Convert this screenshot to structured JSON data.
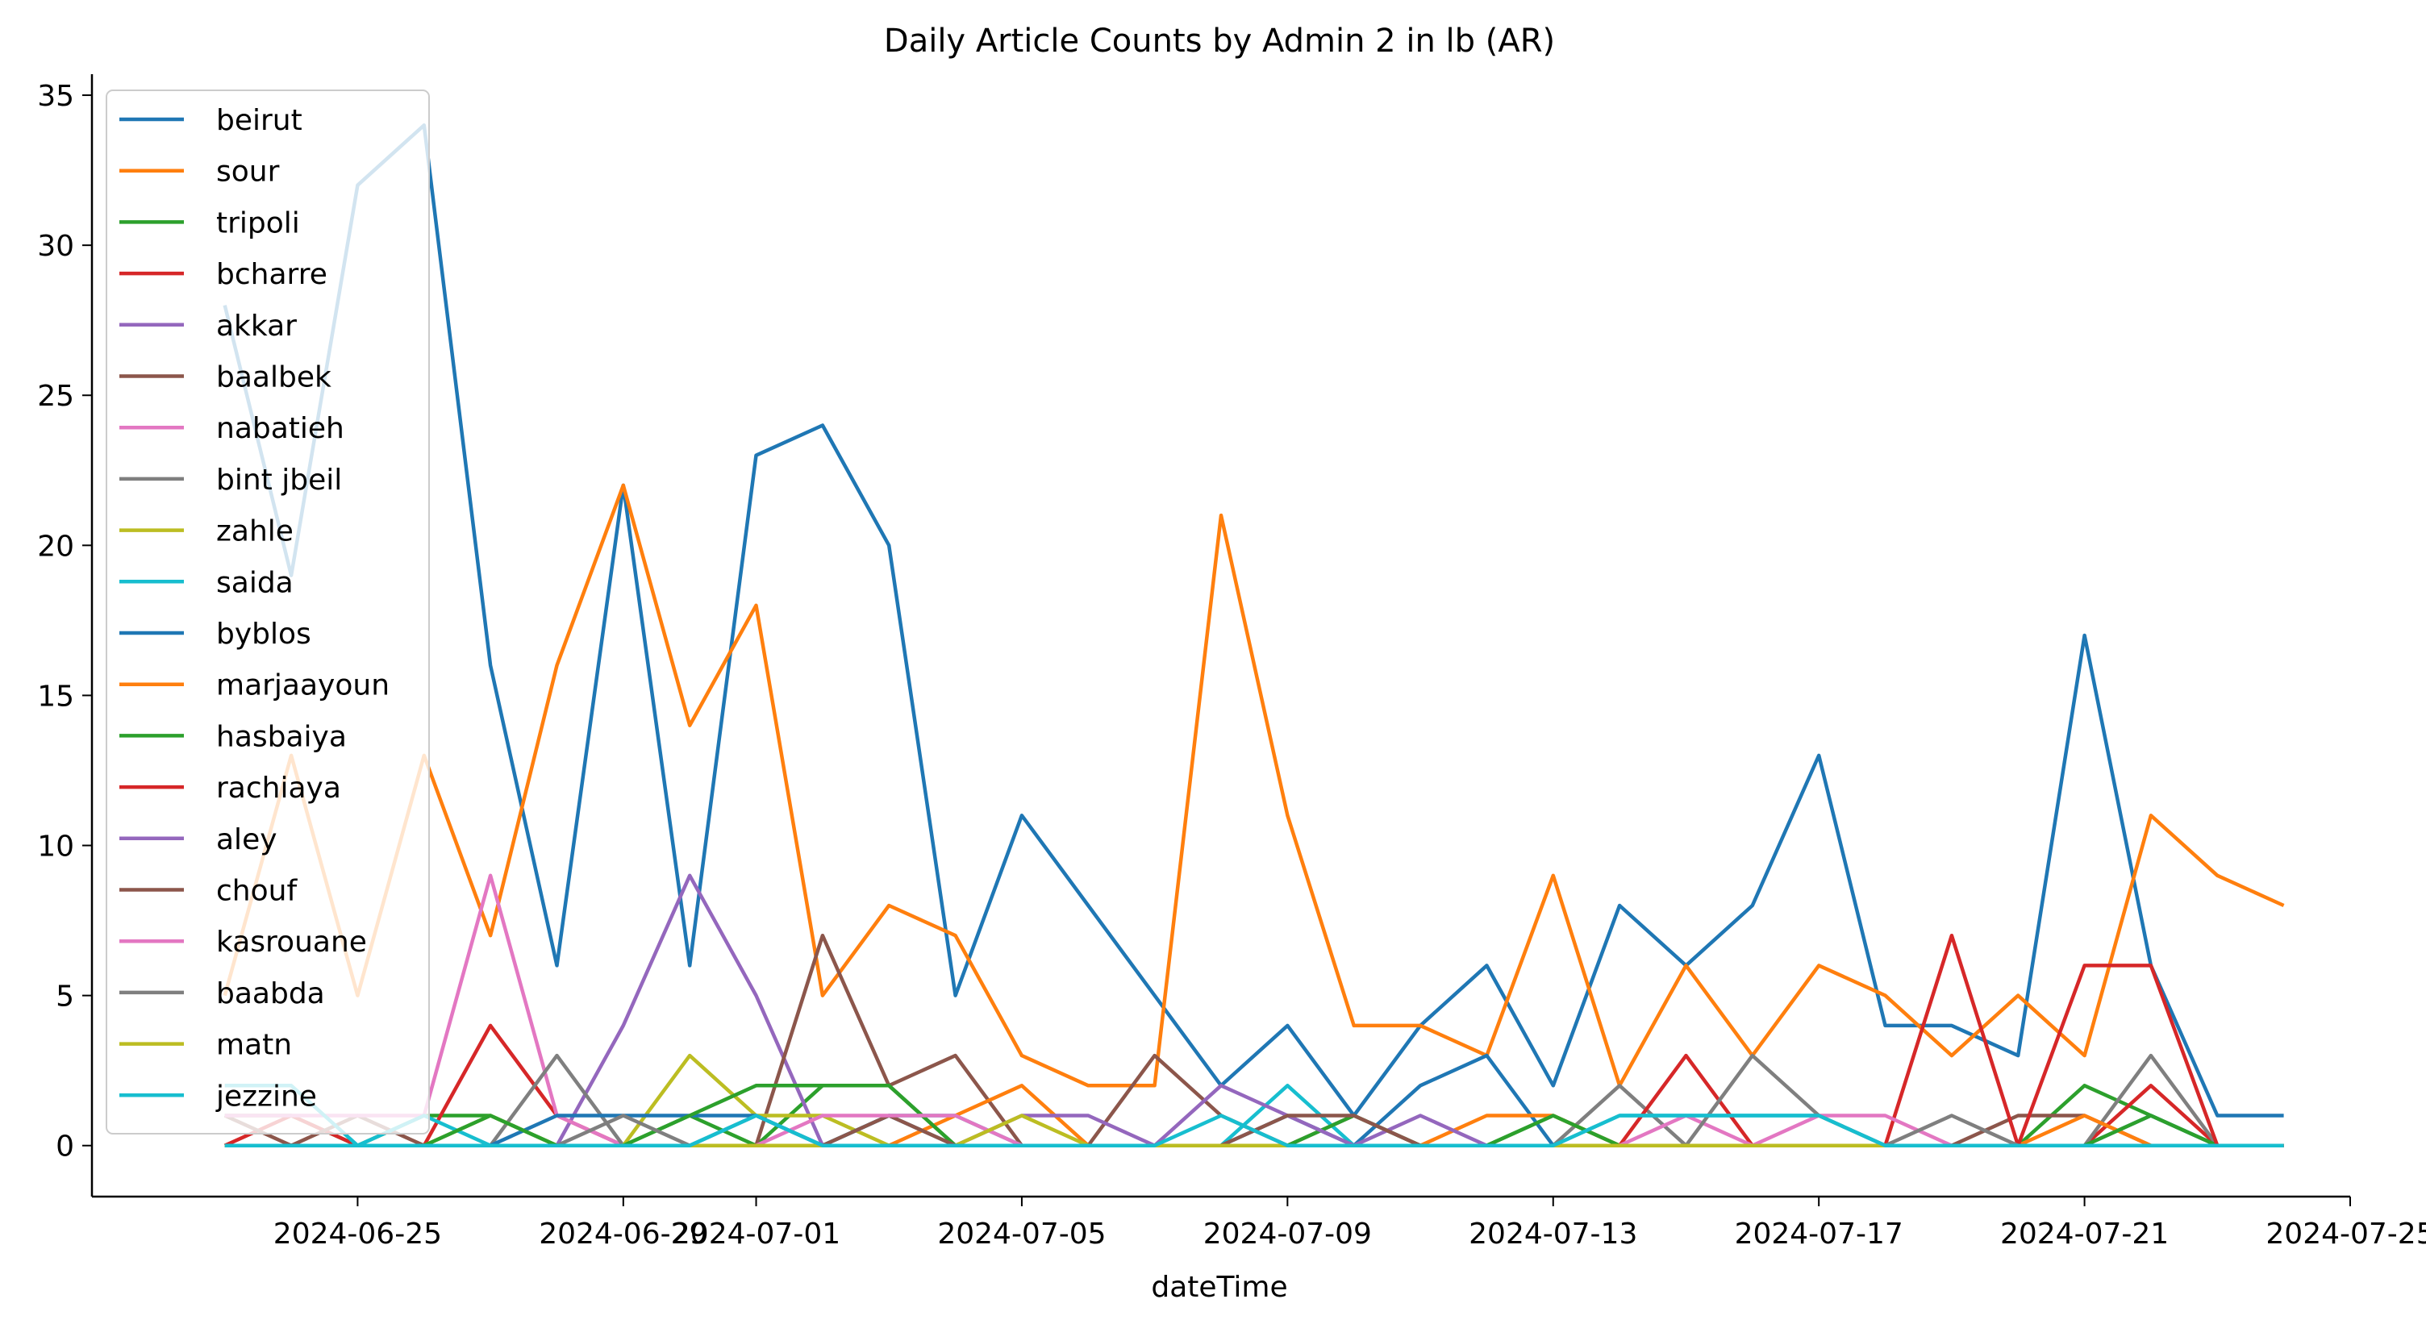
{
  "chart_data": {
    "type": "line",
    "title": "Daily Article Counts by Admin 2 in lb (AR)",
    "xlabel": "dateTime",
    "ylabel": "",
    "ylim": [
      -1.7,
      35.7
    ],
    "yticks": [
      0,
      5,
      10,
      15,
      20,
      25,
      30,
      35
    ],
    "xlim": [
      "2024-06-21",
      "2024-07-25"
    ],
    "xticks": [
      "2024-06-25",
      "2024-06-29",
      "2024-07-01",
      "2024-07-05",
      "2024-07-09",
      "2024-07-13",
      "2024-07-17",
      "2024-07-21",
      "2024-07-25"
    ],
    "x": [
      "2024-06-23",
      "2024-06-24",
      "2024-06-25",
      "2024-06-26",
      "2024-06-27",
      "2024-06-28",
      "2024-06-29",
      "2024-06-30",
      "2024-07-01",
      "2024-07-02",
      "2024-07-03",
      "2024-07-04",
      "2024-07-05",
      "2024-07-06",
      "2024-07-07",
      "2024-07-08",
      "2024-07-09",
      "2024-07-10",
      "2024-07-11",
      "2024-07-12",
      "2024-07-13",
      "2024-07-14",
      "2024-07-15",
      "2024-07-16",
      "2024-07-17",
      "2024-07-18",
      "2024-07-19",
      "2024-07-20",
      "2024-07-21",
      "2024-07-22",
      "2024-07-23",
      "2024-07-24"
    ],
    "legend_position": "upper left",
    "grid": false,
    "series": [
      {
        "name": "beirut",
        "color": "#1f77b4",
        "values": [
          28,
          19,
          32,
          34,
          16,
          6,
          22,
          6,
          23,
          24,
          20,
          5,
          11,
          8,
          5,
          2,
          4,
          1,
          4,
          6,
          2,
          8,
          6,
          8,
          13,
          4,
          4,
          3,
          17,
          6,
          1,
          1
        ]
      },
      {
        "name": "sour",
        "color": "#ff7f0e",
        "values": [
          5,
          13,
          5,
          13,
          7,
          16,
          22,
          14,
          18,
          5,
          8,
          7,
          3,
          2,
          2,
          21,
          11,
          4,
          4,
          3,
          9,
          2,
          6,
          3,
          6,
          5,
          3,
          5,
          3,
          11,
          9,
          8
        ]
      },
      {
        "name": "tripoli",
        "color": "#2ca02c",
        "values": [
          1,
          1,
          0,
          1,
          1,
          0,
          0,
          1,
          0,
          2,
          2,
          0,
          0,
          0,
          0,
          0,
          0,
          0,
          0,
          0,
          1,
          0,
          0,
          0,
          0,
          0,
          0,
          0,
          2,
          1,
          0,
          0
        ]
      },
      {
        "name": "bcharre",
        "color": "#d62728",
        "values": [
          0,
          1,
          0,
          0,
          4,
          1,
          0,
          0,
          0,
          0,
          0,
          0,
          0,
          0,
          0,
          0,
          0,
          0,
          0,
          0,
          0,
          0,
          0,
          0,
          0,
          0,
          0,
          0,
          0,
          2,
          0,
          0
        ]
      },
      {
        "name": "akkar",
        "color": "#9467bd",
        "values": [
          0,
          0,
          0,
          0,
          0,
          0,
          4,
          9,
          5,
          0,
          0,
          0,
          0,
          0,
          0,
          0,
          0,
          0,
          0,
          0,
          0,
          0,
          0,
          0,
          0,
          0,
          0,
          0,
          0,
          0,
          0,
          0
        ]
      },
      {
        "name": "baalbek",
        "color": "#8c564b",
        "values": [
          1,
          0,
          1,
          0,
          0,
          0,
          0,
          0,
          0,
          7,
          2,
          3,
          0,
          0,
          3,
          1,
          0,
          1,
          0,
          0,
          0,
          0,
          0,
          0,
          0,
          0,
          0,
          1,
          1,
          0,
          0,
          0
        ]
      },
      {
        "name": "nabatieh",
        "color": "#e377c2",
        "values": [
          1,
          1,
          1,
          1,
          9,
          1,
          0,
          0,
          1,
          0,
          0,
          0,
          0,
          0,
          0,
          0,
          0,
          0,
          0,
          0,
          0,
          0,
          0,
          0,
          0,
          0,
          0,
          0,
          0,
          0,
          0,
          0
        ]
      },
      {
        "name": "bint jbeil",
        "color": "#7f7f7f",
        "values": [
          0,
          0,
          0,
          0,
          0,
          3,
          0,
          0,
          0,
          0,
          0,
          0,
          0,
          0,
          0,
          0,
          0,
          0,
          0,
          0,
          0,
          2,
          0,
          0,
          0,
          0,
          0,
          0,
          0,
          3,
          0,
          0
        ]
      },
      {
        "name": "zahle",
        "color": "#bcbd22",
        "values": [
          0,
          0,
          0,
          0,
          1,
          0,
          0,
          3,
          1,
          1,
          0,
          0,
          0,
          0,
          0,
          0,
          0,
          0,
          0,
          0,
          0,
          0,
          0,
          0,
          0,
          0,
          0,
          0,
          0,
          0,
          0,
          0
        ]
      },
      {
        "name": "saida",
        "color": "#17becf",
        "values": [
          2,
          2,
          0,
          1,
          0,
          0,
          0,
          0,
          1,
          0,
          1,
          1,
          0,
          0,
          0,
          0,
          2,
          0,
          0,
          0,
          0,
          1,
          1,
          1,
          1,
          0,
          0,
          0,
          0,
          0,
          0,
          0
        ]
      },
      {
        "name": "byblos",
        "color": "#1f77b4",
        "values": [
          0,
          0,
          0,
          0,
          0,
          1,
          1,
          1,
          1,
          0,
          1,
          0,
          0,
          0,
          0,
          0,
          1,
          0,
          2,
          3,
          0,
          0,
          0,
          0,
          0,
          0,
          0,
          0,
          0,
          1,
          0,
          0
        ]
      },
      {
        "name": "marjaayoun",
        "color": "#ff7f0e",
        "values": [
          0,
          0,
          0,
          0,
          0,
          0,
          0,
          0,
          0,
          0,
          0,
          1,
          2,
          0,
          0,
          0,
          0,
          0,
          0,
          1,
          1,
          0,
          0,
          0,
          0,
          0,
          0,
          0,
          1,
          0,
          0,
          0
        ]
      },
      {
        "name": "hasbaiya",
        "color": "#2ca02c",
        "values": [
          0,
          0,
          0,
          0,
          1,
          0,
          0,
          1,
          2,
          2,
          2,
          0,
          0,
          0,
          0,
          0,
          0,
          1,
          0,
          0,
          1,
          0,
          0,
          0,
          0,
          0,
          0,
          0,
          0,
          1,
          0,
          0
        ]
      },
      {
        "name": "rachiaya",
        "color": "#d62728",
        "values": [
          0,
          0,
          0,
          0,
          0,
          0,
          0,
          0,
          0,
          0,
          0,
          0,
          0,
          0,
          0,
          0,
          0,
          0,
          0,
          0,
          0,
          0,
          3,
          0,
          0,
          0,
          7,
          0,
          6,
          6,
          0,
          0
        ]
      },
      {
        "name": "aley",
        "color": "#9467bd",
        "values": [
          0,
          0,
          0,
          0,
          0,
          0,
          0,
          0,
          0,
          0,
          0,
          0,
          1,
          1,
          0,
          2,
          1,
          0,
          1,
          0,
          0,
          0,
          0,
          0,
          0,
          0,
          0,
          0,
          0,
          0,
          0,
          0
        ]
      },
      {
        "name": "chouf",
        "color": "#8c564b",
        "values": [
          0,
          0,
          0,
          0,
          0,
          0,
          0,
          0,
          0,
          0,
          1,
          0,
          0,
          0,
          0,
          0,
          1,
          1,
          0,
          0,
          0,
          0,
          0,
          0,
          0,
          0,
          0,
          0,
          0,
          0,
          0,
          0
        ]
      },
      {
        "name": "kasrouane",
        "color": "#e377c2",
        "values": [
          0,
          0,
          0,
          0,
          0,
          0,
          0,
          0,
          0,
          1,
          1,
          1,
          0,
          0,
          0,
          0,
          0,
          0,
          0,
          0,
          0,
          0,
          1,
          0,
          1,
          1,
          0,
          0,
          0,
          0,
          0,
          0
        ]
      },
      {
        "name": "baabda",
        "color": "#7f7f7f",
        "values": [
          0,
          0,
          0,
          0,
          0,
          0,
          1,
          0,
          0,
          0,
          0,
          0,
          0,
          0,
          0,
          0,
          0,
          0,
          0,
          0,
          0,
          0,
          0,
          3,
          1,
          0,
          1,
          0,
          0,
          0,
          0,
          0
        ]
      },
      {
        "name": "matn",
        "color": "#bcbd22",
        "values": [
          0,
          0,
          0,
          0,
          0,
          0,
          0,
          0,
          0,
          0,
          0,
          0,
          1,
          0,
          0,
          0,
          0,
          0,
          0,
          0,
          0,
          0,
          0,
          0,
          0,
          0,
          0,
          0,
          0,
          0,
          0,
          0
        ]
      },
      {
        "name": "jezzine",
        "color": "#17becf",
        "values": [
          0,
          0,
          0,
          0,
          0,
          0,
          0,
          0,
          1,
          0,
          0,
          0,
          0,
          0,
          0,
          1,
          0,
          0,
          0,
          0,
          0,
          1,
          1,
          1,
          1,
          0,
          0,
          0,
          0,
          0,
          0,
          0
        ]
      }
    ]
  }
}
